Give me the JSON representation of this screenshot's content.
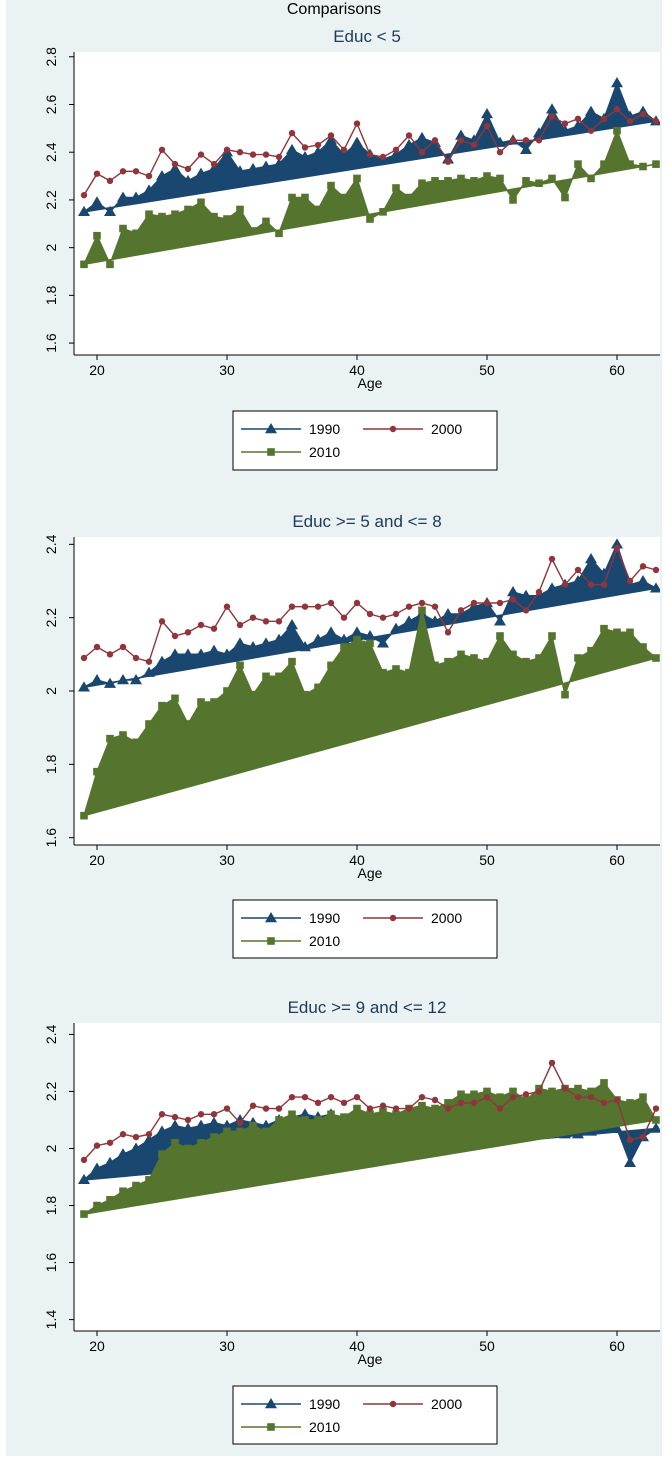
{
  "page_title": "Comparisons",
  "colors": {
    "frame_bg": "#eaf2f3",
    "plot_bg": "#ffffff",
    "title_color": "#1e3a56",
    "s1990": "#1a476f",
    "s2000": "#90353b",
    "s2010": "#55752f"
  },
  "chart_data": [
    {
      "type": "line",
      "title": "Educ < 5",
      "xlabel": "Age",
      "ylabel": "",
      "xlim": [
        19,
        63
      ],
      "ylim": [
        1.55,
        2.82
      ],
      "xticks": [
        20,
        30,
        40,
        50,
        60
      ],
      "yticks": [
        1.6,
        1.8,
        2,
        2.2,
        2.4,
        2.6,
        2.8
      ],
      "ytick_labels": [
        "1.6",
        "1.8",
        "2",
        "2.2",
        "2.4",
        "2.6",
        "2.8"
      ],
      "grid": false,
      "legend": "below",
      "x": [
        19,
        20,
        21,
        22,
        23,
        24,
        25,
        26,
        27,
        28,
        29,
        30,
        31,
        32,
        33,
        34,
        35,
        36,
        37,
        38,
        39,
        40,
        41,
        42,
        43,
        44,
        45,
        46,
        47,
        48,
        49,
        50,
        51,
        52,
        53,
        54,
        55,
        56,
        57,
        58,
        59,
        60,
        61,
        62,
        63
      ],
      "series": [
        {
          "name": "1990",
          "marker": "triangle",
          "fill": true,
          "values": [
            2.15,
            2.19,
            2.15,
            2.21,
            2.21,
            2.24,
            2.3,
            2.33,
            2.28,
            2.31,
            2.33,
            2.4,
            2.32,
            2.33,
            2.34,
            2.35,
            2.41,
            2.38,
            2.4,
            2.45,
            2.39,
            2.44,
            2.39,
            2.37,
            2.39,
            2.43,
            2.46,
            2.44,
            2.37,
            2.47,
            2.45,
            2.56,
            2.44,
            2.45,
            2.41,
            2.48,
            2.58,
            2.49,
            2.51,
            2.57,
            2.54,
            2.69,
            2.55,
            2.57,
            2.53
          ]
        },
        {
          "name": "2000",
          "marker": "circle",
          "fill": false,
          "values": [
            2.22,
            2.31,
            2.28,
            2.32,
            2.32,
            2.3,
            2.41,
            2.35,
            2.33,
            2.39,
            2.35,
            2.41,
            2.4,
            2.39,
            2.39,
            2.38,
            2.48,
            2.42,
            2.43,
            2.47,
            2.41,
            2.52,
            2.39,
            2.38,
            2.41,
            2.47,
            2.4,
            2.45,
            2.36,
            2.45,
            2.43,
            2.51,
            2.4,
            2.45,
            2.45,
            2.45,
            2.55,
            2.52,
            2.54,
            2.49,
            2.54,
            2.58,
            2.53,
            2.56,
            2.53
          ]
        },
        {
          "name": "2010",
          "marker": "square",
          "fill": true,
          "values": [
            1.93,
            2.05,
            1.93,
            2.08,
            2.06,
            2.14,
            2.13,
            2.14,
            2.16,
            2.19,
            2.13,
            2.12,
            2.16,
            2.07,
            2.11,
            2.06,
            2.21,
            2.21,
            2.16,
            2.26,
            2.21,
            2.29,
            2.12,
            2.15,
            2.25,
            2.21,
            2.27,
            2.28,
            2.28,
            2.29,
            2.28,
            2.3,
            2.29,
            2.2,
            2.28,
            2.27,
            2.29,
            2.21,
            2.35,
            2.29,
            2.35,
            2.49,
            2.35,
            2.34,
            2.35
          ]
        }
      ]
    },
    {
      "type": "line",
      "title": "Educ >= 5 and <= 8",
      "xlabel": "Age",
      "ylabel": "",
      "xlim": [
        19,
        63
      ],
      "ylim": [
        1.58,
        2.42
      ],
      "xticks": [
        20,
        30,
        40,
        50,
        60
      ],
      "yticks": [
        1.6,
        1.8,
        2,
        2.2,
        2.4
      ],
      "ytick_labels": [
        "1.6",
        "1.8",
        "2",
        "2.2",
        "2.4"
      ],
      "grid": false,
      "legend": "below",
      "x": [
        19,
        20,
        21,
        22,
        23,
        24,
        25,
        26,
        27,
        28,
        29,
        30,
        31,
        32,
        33,
        34,
        35,
        36,
        37,
        38,
        39,
        40,
        41,
        42,
        43,
        44,
        45,
        46,
        47,
        48,
        49,
        50,
        51,
        52,
        53,
        54,
        55,
        56,
        57,
        58,
        59,
        60,
        61,
        62,
        63
      ],
      "series": [
        {
          "name": "1990",
          "marker": "triangle",
          "fill": true,
          "values": [
            2.01,
            2.03,
            2.02,
            2.03,
            2.03,
            2.05,
            2.08,
            2.1,
            2.1,
            2.1,
            2.11,
            2.1,
            2.13,
            2.12,
            2.13,
            2.14,
            2.18,
            2.12,
            2.14,
            2.16,
            2.14,
            2.16,
            2.15,
            2.13,
            2.17,
            2.19,
            2.21,
            2.19,
            2.21,
            2.21,
            2.23,
            2.24,
            2.19,
            2.27,
            2.26,
            2.26,
            2.28,
            2.29,
            2.3,
            2.36,
            2.32,
            2.4,
            2.29,
            2.3,
            2.28
          ]
        },
        {
          "name": "2000",
          "marker": "circle",
          "fill": false,
          "values": [
            2.09,
            2.12,
            2.1,
            2.12,
            2.09,
            2.08,
            2.19,
            2.15,
            2.16,
            2.18,
            2.17,
            2.23,
            2.18,
            2.2,
            2.19,
            2.19,
            2.23,
            2.23,
            2.23,
            2.24,
            2.2,
            2.24,
            2.21,
            2.2,
            2.21,
            2.23,
            2.24,
            2.23,
            2.16,
            2.22,
            2.24,
            2.24,
            2.24,
            2.25,
            2.22,
            2.27,
            2.36,
            2.29,
            2.33,
            2.29,
            2.29,
            2.39,
            2.3,
            2.34,
            2.33
          ]
        },
        {
          "name": "2010",
          "marker": "square",
          "fill": true,
          "values": [
            1.66,
            1.78,
            1.87,
            1.88,
            1.86,
            1.91,
            1.96,
            1.98,
            1.91,
            1.97,
            1.97,
            2.0,
            2.07,
            1.99,
            2.04,
            2.04,
            2.08,
            1.99,
            2.01,
            2.07,
            2.12,
            2.14,
            2.13,
            2.05,
            2.06,
            2.05,
            2.22,
            2.07,
            2.08,
            2.1,
            2.09,
            2.08,
            2.15,
            2.1,
            2.08,
            2.09,
            2.15,
            1.99,
            2.09,
            2.11,
            2.17,
            2.16,
            2.16,
            2.12,
            2.09
          ]
        }
      ]
    },
    {
      "type": "line",
      "title": "Educ >= 9 and <= 12",
      "xlabel": "Age",
      "ylabel": "",
      "xlim": [
        19,
        63
      ],
      "ylim": [
        1.36,
        2.44
      ],
      "xticks": [
        20,
        30,
        40,
        50,
        60
      ],
      "yticks": [
        1.4,
        1.6,
        1.8,
        2,
        2.2,
        2.4
      ],
      "ytick_labels": [
        "1.4",
        "1.6",
        "1.8",
        "2",
        "2.2",
        "2.4"
      ],
      "grid": false,
      "legend": "below",
      "x": [
        19,
        20,
        21,
        22,
        23,
        24,
        25,
        26,
        27,
        28,
        29,
        30,
        31,
        32,
        33,
        34,
        35,
        36,
        37,
        38,
        39,
        40,
        41,
        42,
        43,
        44,
        45,
        46,
        47,
        48,
        49,
        50,
        51,
        52,
        53,
        54,
        55,
        56,
        57,
        58,
        59,
        60,
        61,
        62,
        63
      ],
      "series": [
        {
          "name": "1990",
          "marker": "triangle",
          "fill": true,
          "values": [
            1.89,
            1.93,
            1.95,
            1.98,
            2.0,
            2.03,
            2.06,
            2.08,
            2.07,
            2.08,
            2.09,
            2.08,
            2.1,
            2.09,
            2.08,
            2.1,
            2.11,
            2.12,
            2.11,
            2.12,
            2.1,
            2.12,
            2.09,
            2.08,
            2.1,
            2.1,
            2.08,
            2.09,
            2.05,
            2.08,
            2.06,
            2.09,
            2.07,
            2.08,
            2.04,
            2.07,
            2.07,
            2.05,
            2.05,
            2.06,
            2.08,
            2.07,
            1.95,
            2.04,
            2.07
          ]
        },
        {
          "name": "2000",
          "marker": "circle",
          "fill": false,
          "values": [
            1.96,
            2.01,
            2.02,
            2.05,
            2.04,
            2.05,
            2.12,
            2.11,
            2.1,
            2.12,
            2.12,
            2.14,
            2.09,
            2.15,
            2.14,
            2.14,
            2.18,
            2.18,
            2.16,
            2.18,
            2.16,
            2.18,
            2.14,
            2.15,
            2.14,
            2.14,
            2.18,
            2.17,
            2.14,
            2.16,
            2.16,
            2.18,
            2.14,
            2.18,
            2.19,
            2.2,
            2.3,
            2.21,
            2.18,
            2.18,
            2.16,
            2.17,
            2.03,
            2.04,
            2.14
          ]
        },
        {
          "name": "2010",
          "marker": "square",
          "fill": true,
          "values": [
            1.77,
            1.8,
            1.82,
            1.85,
            1.87,
            1.89,
            1.98,
            2.02,
            2.0,
            2.02,
            2.04,
            2.06,
            2.06,
            2.08,
            2.06,
            2.1,
            2.12,
            2.1,
            2.1,
            2.12,
            2.11,
            2.14,
            2.12,
            2.13,
            2.12,
            2.14,
            2.15,
            2.14,
            2.16,
            2.19,
            2.19,
            2.2,
            2.18,
            2.2,
            2.17,
            2.21,
            2.2,
            2.21,
            2.21,
            2.2,
            2.23,
            2.17,
            2.16,
            2.18,
            2.1
          ]
        }
      ]
    }
  ]
}
